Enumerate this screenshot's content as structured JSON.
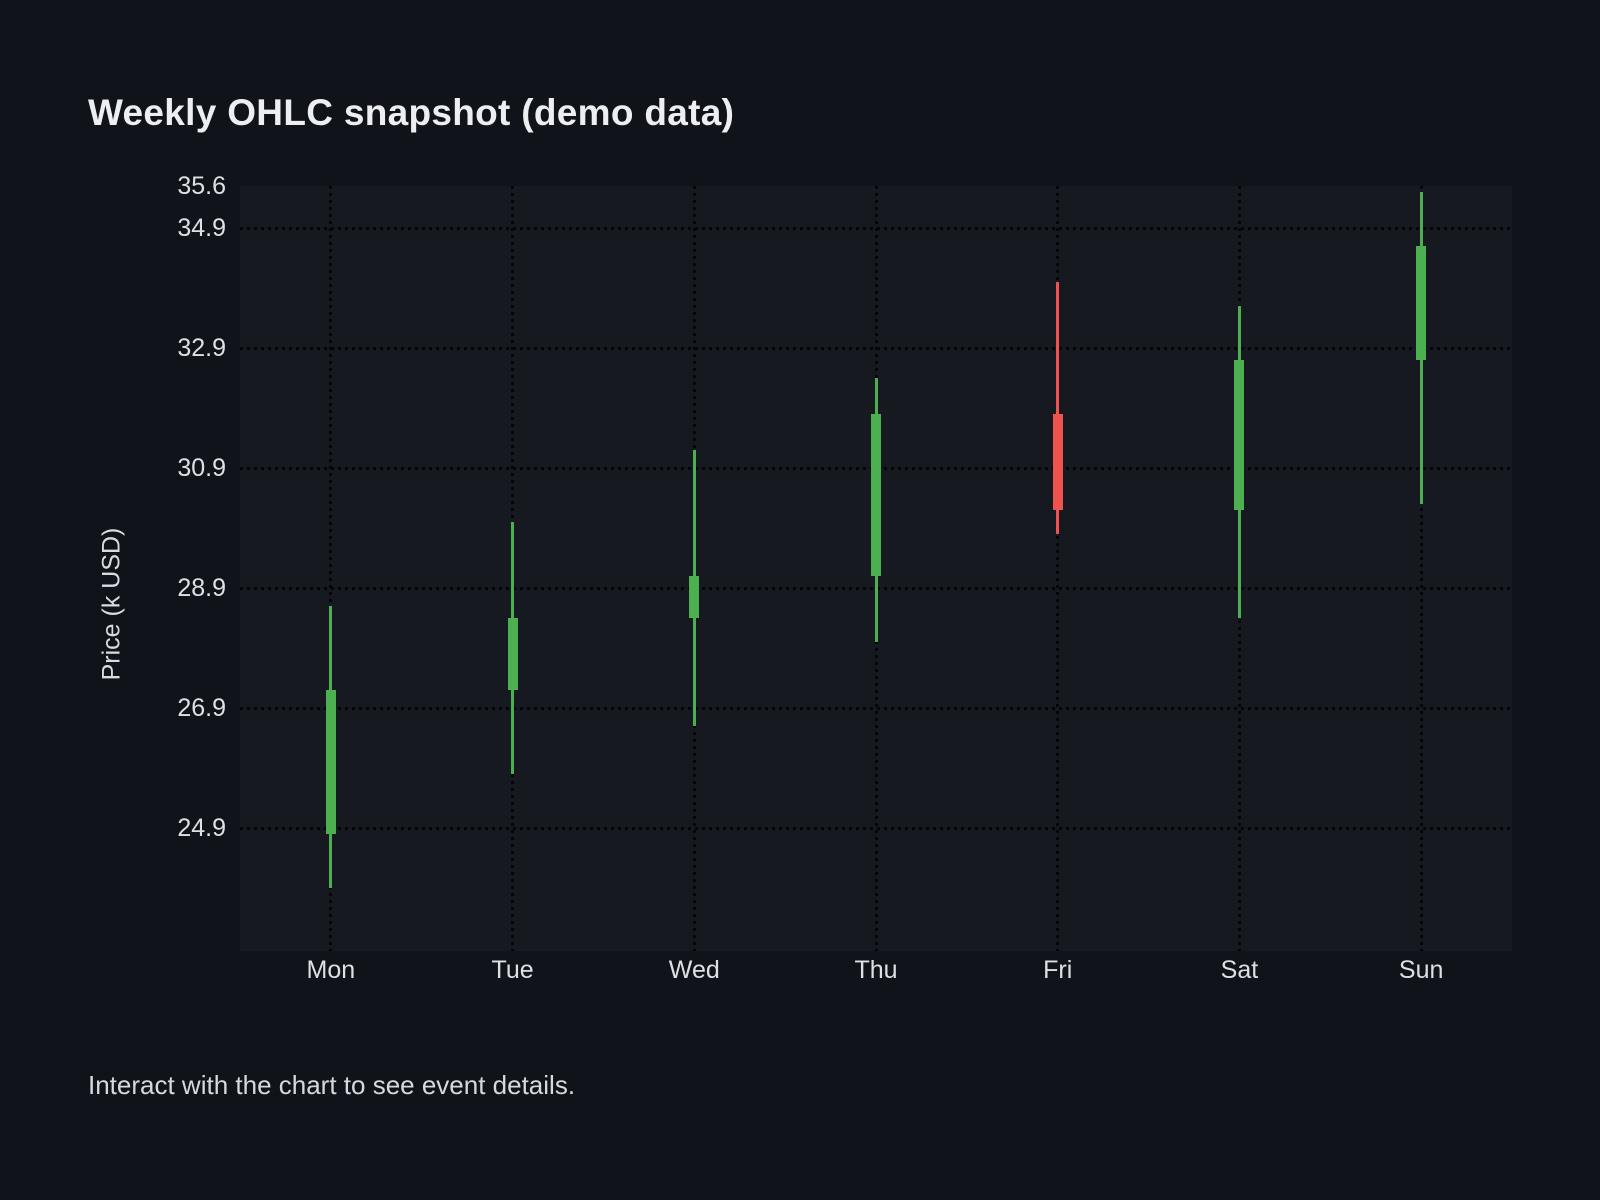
{
  "page": {
    "background": "#10131a",
    "panel_background": "#161a20"
  },
  "header": {
    "title": "Weekly OHLC snapshot (demo data)"
  },
  "footer": {
    "note": "Interact with the chart to see event details."
  },
  "chart_data": {
    "type": "candlestick",
    "title": "Weekly OHLC snapshot (demo data)",
    "xlabel": "",
    "ylabel": "Price (k USD)",
    "categories": [
      "Mon",
      "Tue",
      "Wed",
      "Thu",
      "Fri",
      "Sat",
      "Sun"
    ],
    "series": [
      {
        "name": "OHLC",
        "points": [
          {
            "category": "Mon",
            "open": 24.8,
            "high": 28.6,
            "low": 23.9,
            "close": 27.2,
            "direction": "up"
          },
          {
            "category": "Tue",
            "open": 27.2,
            "high": 30.0,
            "low": 25.8,
            "close": 28.4,
            "direction": "up"
          },
          {
            "category": "Wed",
            "open": 28.4,
            "high": 31.2,
            "low": 26.6,
            "close": 29.1,
            "direction": "up"
          },
          {
            "category": "Thu",
            "open": 29.1,
            "high": 32.4,
            "low": 28.0,
            "close": 31.8,
            "direction": "up"
          },
          {
            "category": "Fri",
            "open": 31.8,
            "high": 34.0,
            "low": 29.8,
            "close": 30.2,
            "direction": "down"
          },
          {
            "category": "Sat",
            "open": 30.2,
            "high": 33.6,
            "low": 28.4,
            "close": 32.7,
            "direction": "up"
          },
          {
            "category": "Sun",
            "open": 32.7,
            "high": 35.5,
            "low": 30.3,
            "close": 34.6,
            "direction": "up"
          }
        ]
      }
    ],
    "y_ticks": [
      "35.6",
      "34.9",
      "32.9",
      "30.9",
      "28.9",
      "26.9",
      "24.9"
    ],
    "ylim": [
      22.85,
      35.6
    ],
    "grid": true,
    "legend": null,
    "colors": {
      "up": "#4caf50",
      "down": "#ef5350",
      "grid_dot": "#04060a",
      "tick_text": "#dde1e6",
      "title_text": "#eceef1"
    }
  }
}
